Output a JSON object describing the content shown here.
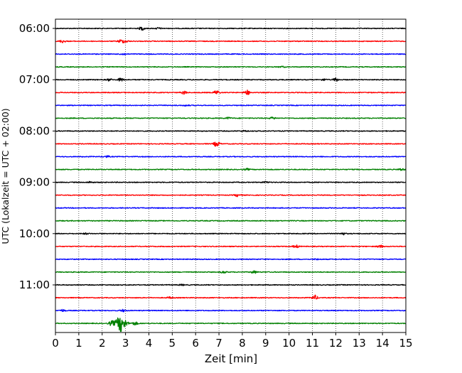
{
  "chart_data": {
    "type": "line",
    "title": "",
    "xlabel": "Zeit  [min]",
    "ylabel": "UTC (Lokalzeit = UTC + 02:00)",
    "xlim": [
      0,
      15
    ],
    "x_ticks": [
      "0",
      "1",
      "2",
      "3",
      "4",
      "5",
      "6",
      "7",
      "8",
      "9",
      "10",
      "11",
      "12",
      "13",
      "14",
      "15"
    ],
    "y_ticks": [
      "06:00",
      "07:00",
      "08:00",
      "09:00",
      "10:00",
      "11:00"
    ],
    "grid": "vertical-dotted",
    "trace_colors": [
      "#000000",
      "#ff0000",
      "#0000ff",
      "#008000"
    ],
    "traces": [
      {
        "start": "06:00",
        "color": "#000000",
        "events": [
          {
            "t": 3.7,
            "amp": 0.6
          },
          {
            "t": 4.4,
            "amp": 0.3
          }
        ]
      },
      {
        "start": "06:15",
        "color": "#ff0000",
        "events": [
          {
            "t": 0.3,
            "amp": 0.5
          },
          {
            "t": 2.8,
            "amp": 0.6
          },
          {
            "t": 3.0,
            "amp": 0.4
          }
        ]
      },
      {
        "start": "06:30",
        "color": "#0000ff",
        "events": [
          {
            "t": 2.9,
            "amp": 0.3
          }
        ]
      },
      {
        "start": "06:45",
        "color": "#008000",
        "events": [
          {
            "t": 9.7,
            "amp": 0.2
          }
        ]
      },
      {
        "start": "07:00",
        "color": "#000000",
        "events": [
          {
            "t": 2.3,
            "amp": 0.4
          },
          {
            "t": 2.8,
            "amp": 0.6
          },
          {
            "t": 12.0,
            "amp": 0.6
          },
          {
            "t": 11.5,
            "amp": 0.3
          }
        ]
      },
      {
        "start": "07:15",
        "color": "#ff0000",
        "events": [
          {
            "t": 5.5,
            "amp": 0.6
          },
          {
            "t": 6.9,
            "amp": 0.8
          },
          {
            "t": 8.2,
            "amp": 0.9
          }
        ]
      },
      {
        "start": "07:30",
        "color": "#0000ff",
        "events": [
          {
            "t": 5.6,
            "amp": 0.2
          }
        ]
      },
      {
        "start": "07:45",
        "color": "#008000",
        "events": [
          {
            "t": 7.4,
            "amp": 0.3
          },
          {
            "t": 9.3,
            "amp": 0.4
          }
        ]
      },
      {
        "start": "08:00",
        "color": "#000000",
        "events": [
          {
            "t": 8.1,
            "amp": 0.2
          }
        ]
      },
      {
        "start": "08:15",
        "color": "#ff0000",
        "events": [
          {
            "t": 6.9,
            "amp": 1.0
          }
        ]
      },
      {
        "start": "08:30",
        "color": "#0000ff",
        "events": [
          {
            "t": 2.2,
            "amp": 0.3
          }
        ]
      },
      {
        "start": "08:45",
        "color": "#008000",
        "events": [
          {
            "t": 8.2,
            "amp": 0.3
          },
          {
            "t": 14.8,
            "amp": 0.4
          }
        ]
      },
      {
        "start": "09:00",
        "color": "#000000",
        "events": [
          {
            "t": 1.5,
            "amp": 0.3
          },
          {
            "t": 9.0,
            "amp": 0.3
          }
        ]
      },
      {
        "start": "09:15",
        "color": "#ff0000",
        "events": [
          {
            "t": 7.8,
            "amp": 0.5
          }
        ]
      },
      {
        "start": "09:30",
        "color": "#0000ff",
        "events": []
      },
      {
        "start": "09:45",
        "color": "#008000",
        "events": []
      },
      {
        "start": "10:00",
        "color": "#000000",
        "events": [
          {
            "t": 1.3,
            "amp": 0.2
          },
          {
            "t": 12.3,
            "amp": 0.4
          }
        ]
      },
      {
        "start": "10:15",
        "color": "#ff0000",
        "events": [
          {
            "t": 10.3,
            "amp": 0.5
          },
          {
            "t": 13.9,
            "amp": 0.5
          }
        ]
      },
      {
        "start": "10:30",
        "color": "#0000ff",
        "events": [
          {
            "t": 11.2,
            "amp": 0.2
          }
        ]
      },
      {
        "start": "10:45",
        "color": "#008000",
        "events": [
          {
            "t": 7.2,
            "amp": 0.4
          },
          {
            "t": 8.5,
            "amp": 0.5
          }
        ]
      },
      {
        "start": "11:00",
        "color": "#000000",
        "events": [
          {
            "t": 5.4,
            "amp": 0.2
          }
        ]
      },
      {
        "start": "11:15",
        "color": "#ff0000",
        "events": [
          {
            "t": 4.9,
            "amp": 0.3
          },
          {
            "t": 11.1,
            "amp": 0.9
          }
        ]
      },
      {
        "start": "11:30",
        "color": "#0000ff",
        "events": [
          {
            "t": 0.3,
            "amp": 0.4
          },
          {
            "t": 2.9,
            "amp": 0.4
          }
        ]
      },
      {
        "start": "11:45",
        "color": "#008000",
        "events": [
          {
            "t": 2.8,
            "amp": 3.0
          },
          {
            "t": 2.4,
            "amp": 0.8
          },
          {
            "t": 3.4,
            "amp": 0.6
          }
        ]
      }
    ]
  }
}
